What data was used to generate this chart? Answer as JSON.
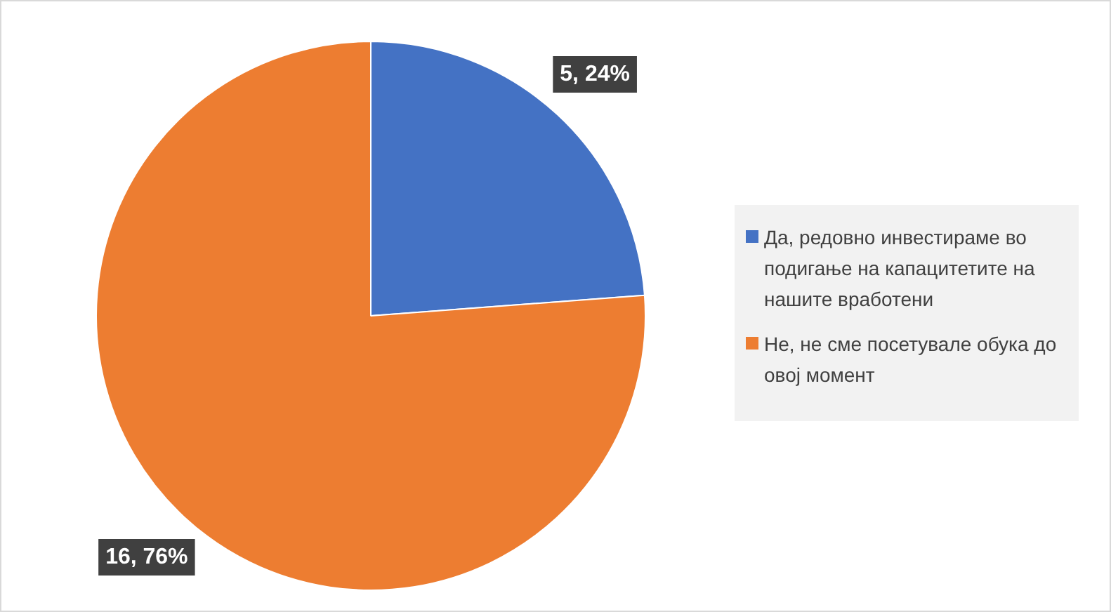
{
  "chart_data": {
    "type": "pie",
    "categories": [
      "Да, редовно инвестираме во подигање на капацитетите на нашите вработени",
      "Не, не сме посетувале обука до овој момент"
    ],
    "values": [
      5,
      16
    ],
    "colors": [
      "#4472c4",
      "#ed7d31"
    ],
    "value_labels": [
      "5, 24%",
      "16, 76%"
    ],
    "legend": "right"
  }
}
